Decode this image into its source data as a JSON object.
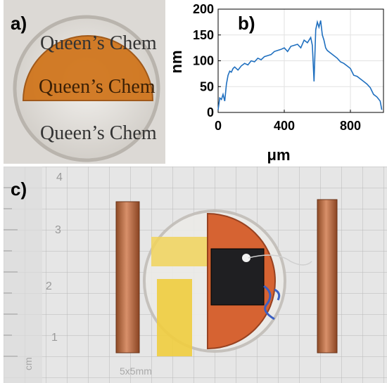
{
  "panels": {
    "a": {
      "label": "a)",
      "printed_text": [
        "Queen’s Chem",
        "Queen’s Chem",
        "Queen’s Chem"
      ]
    },
    "b": {
      "label": "b)"
    },
    "c": {
      "label": "c)",
      "ruler_ticks": [
        "4",
        "3",
        "2",
        "1",
        "cm"
      ],
      "grid_note": "5x5mm"
    }
  },
  "chart_data": {
    "type": "line",
    "title": "",
    "xlabel": "μm",
    "ylabel": "nm",
    "xlim": [
      0,
      1000
    ],
    "ylim": [
      0,
      200
    ],
    "xticks": [
      0,
      400,
      800
    ],
    "yticks": [
      0,
      50,
      100,
      150,
      200
    ],
    "grid": true,
    "color": "#1f6fbf",
    "series": [
      {
        "x": [
          0,
          10,
          20,
          30,
          40,
          50,
          60,
          70,
          80,
          90,
          100,
          120,
          140,
          160,
          180,
          200,
          220,
          240,
          260,
          280,
          300,
          320,
          340,
          360,
          380,
          400,
          420,
          440,
          460,
          480,
          500,
          520,
          540,
          560,
          570,
          580,
          590,
          600,
          610,
          620,
          630,
          640,
          650,
          660,
          680,
          700,
          720,
          740,
          760,
          780,
          800,
          820,
          840,
          860,
          880,
          900,
          920,
          940,
          960,
          980,
          990
        ],
        "y": [
          5,
          28,
          25,
          35,
          22,
          55,
          72,
          80,
          78,
          85,
          88,
          82,
          90,
          95,
          92,
          100,
          98,
          105,
          102,
          108,
          110,
          112,
          118,
          120,
          122,
          125,
          118,
          128,
          130,
          132,
          125,
          140,
          135,
          145,
          130,
          60,
          160,
          175,
          165,
          178,
          150,
          140,
          125,
          120,
          115,
          110,
          105,
          98,
          95,
          90,
          85,
          72,
          70,
          65,
          60,
          55,
          48,
          35,
          30,
          22,
          5
        ]
      }
    ]
  }
}
